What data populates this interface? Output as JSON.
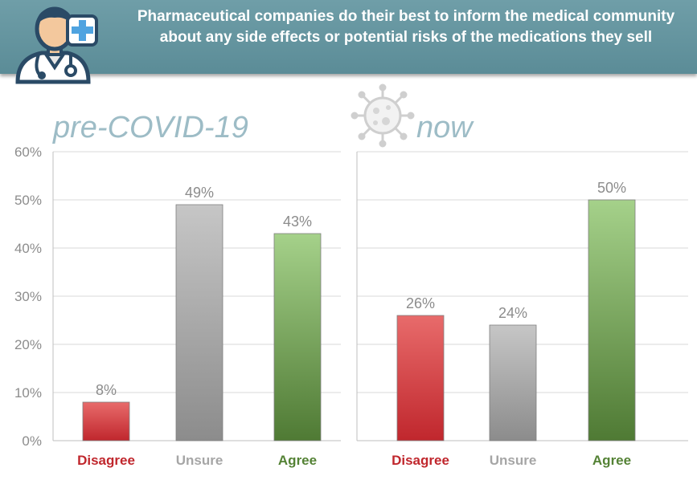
{
  "header": {
    "title": "Pharmaceutical companies do their best to inform the medical community about any side effects or potential risks of the medications they sell"
  },
  "icons": {
    "doctor": "doctor-with-medical-cross-icon",
    "virus": "coronavirus-icon"
  },
  "colors": {
    "banner": "#5b8c97",
    "disagree": "#c0272d",
    "unsure": "#a6a6a6",
    "agree": "#548235",
    "panel_label": "#9dbcc6"
  },
  "chart_data": [
    {
      "type": "bar",
      "title": "pre-COVID-19",
      "categories": [
        "Disagree",
        "Unsure",
        "Agree"
      ],
      "values": [
        8,
        49,
        43
      ],
      "data_labels": [
        "8%",
        "49%",
        "43%"
      ],
      "yticks": [
        "0%",
        "10%",
        "20%",
        "30%",
        "40%",
        "50%",
        "60%"
      ],
      "ylim": [
        0,
        60
      ],
      "grid": true
    },
    {
      "type": "bar",
      "title": "now",
      "categories": [
        "Disagree",
        "Unsure",
        "Agree"
      ],
      "values": [
        26,
        24,
        50
      ],
      "data_labels": [
        "26%",
        "24%",
        "50%"
      ],
      "ylim": [
        0,
        60
      ],
      "grid": true
    }
  ]
}
